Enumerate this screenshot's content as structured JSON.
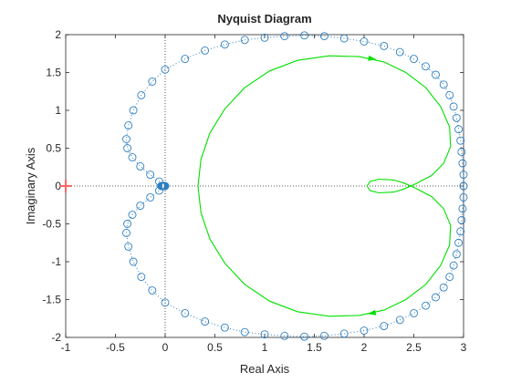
{
  "chart_data": {
    "type": "line",
    "title": "Nyquist Diagram",
    "xlabel": "Real Axis",
    "ylabel": "Imaginary Axis",
    "xlim": [
      -1,
      3
    ],
    "ylim": [
      -2,
      2
    ],
    "xticks": [
      "-1",
      "-0.5",
      "0",
      "0.5",
      "1",
      "1.5",
      "2",
      "2.5",
      "3"
    ],
    "yticks": [
      "-2",
      "-1.5",
      "-1",
      "-0.5",
      "0",
      "0.5",
      "1",
      "1.5",
      "2"
    ],
    "grid": false,
    "critical_point": {
      "x": -1,
      "y": 0,
      "marker": "+",
      "color": "#ff6666"
    },
    "series": [
      {
        "style": "dotted line with circle markers",
        "color": "#2f7fc0",
        "points_upper": [
          [
            3.0,
            0.0
          ],
          [
            3.0,
            0.15
          ],
          [
            2.99,
            0.3
          ],
          [
            2.98,
            0.45
          ],
          [
            2.97,
            0.6
          ],
          [
            2.95,
            0.75
          ],
          [
            2.93,
            0.9
          ],
          [
            2.9,
            1.05
          ],
          [
            2.86,
            1.2
          ],
          [
            2.8,
            1.34
          ],
          [
            2.72,
            1.47
          ],
          [
            2.62,
            1.58
          ],
          [
            2.5,
            1.68
          ],
          [
            2.36,
            1.77
          ],
          [
            2.2,
            1.85
          ],
          [
            2.0,
            1.91
          ],
          [
            1.8,
            1.95
          ],
          [
            1.6,
            1.98
          ],
          [
            1.4,
            1.99
          ],
          [
            1.2,
            1.98
          ],
          [
            1.0,
            1.96
          ],
          [
            0.8,
            1.93
          ],
          [
            0.6,
            1.87
          ],
          [
            0.4,
            1.79
          ],
          [
            0.2,
            1.68
          ],
          [
            0.0,
            1.54
          ],
          [
            -0.13,
            1.38
          ],
          [
            -0.24,
            1.2
          ],
          [
            -0.32,
            1.0
          ],
          [
            -0.37,
            0.8
          ],
          [
            -0.39,
            0.62
          ],
          [
            -0.38,
            0.5
          ],
          [
            -0.33,
            0.38
          ],
          [
            -0.25,
            0.26
          ],
          [
            -0.15,
            0.15
          ],
          [
            -0.06,
            0.06
          ],
          [
            0.0,
            0.0
          ]
        ]
      },
      {
        "style": "solid line",
        "color": "#00e000",
        "points_upper": [
          [
            0.33,
            0.0
          ],
          [
            0.36,
            0.35
          ],
          [
            0.45,
            0.7
          ],
          [
            0.6,
            1.02
          ],
          [
            0.8,
            1.3
          ],
          [
            1.05,
            1.52
          ],
          [
            1.33,
            1.66
          ],
          [
            1.65,
            1.72
          ],
          [
            1.95,
            1.71
          ],
          [
            2.2,
            1.64
          ],
          [
            2.42,
            1.5
          ],
          [
            2.62,
            1.3
          ],
          [
            2.77,
            1.05
          ],
          [
            2.86,
            0.78
          ],
          [
            2.87,
            0.52
          ],
          [
            2.8,
            0.3
          ],
          [
            2.68,
            0.14
          ],
          [
            2.52,
            0.03
          ],
          [
            2.4,
            -0.04
          ],
          [
            2.3,
            -0.08
          ],
          [
            2.15,
            -0.09
          ],
          [
            2.06,
            -0.06
          ],
          [
            2.03,
            0.0
          ]
        ]
      }
    ]
  }
}
